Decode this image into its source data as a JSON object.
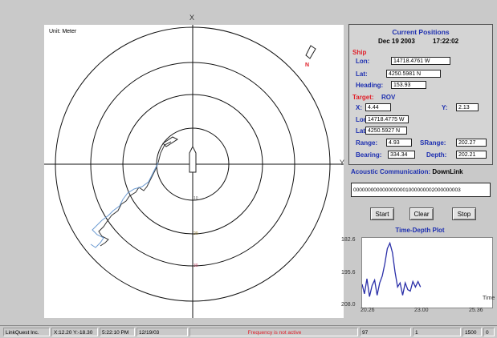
{
  "polar": {
    "title": "Unit: Meter",
    "axis_x_label": "X",
    "axis_y_label": "Y",
    "north_label": "N",
    "ring_labels": [
      "10",
      "20",
      "30"
    ]
  },
  "positions": {
    "title": "Current Positions",
    "date": "Dec 19 2003",
    "time": "17:22:02",
    "ship": {
      "section_label": "Ship",
      "lon_label": "Lon:",
      "lon": "14718.4761 W",
      "lat_label": "Lat:",
      "lat": "4250.5981 N",
      "heading_label": "Heading:",
      "heading": "153.93"
    },
    "target": {
      "section_label": "Target:",
      "name": "ROV",
      "x_label": "X:",
      "x": "4.44",
      "y_label": "Y:",
      "y": "2.13",
      "lon_label": "Lon:",
      "lon": "14718.4775 W",
      "lat_label": "Lat:",
      "lat": "4250.5927 N",
      "range_label": "Range:",
      "range": "4.93",
      "srange_label": "SRange:",
      "srange": "202.27",
      "bearing_label": "Bearing:",
      "bearing": "334.34",
      "depth_label": "Depth:",
      "depth": "202.21"
    }
  },
  "acoustic": {
    "label": "Acoustic Communication:",
    "direction": "DownLink",
    "data": "0000000000000000001000000002000000003"
  },
  "buttons": {
    "start": "Start",
    "clear": "Clear",
    "stop": "Stop"
  },
  "time_depth": {
    "title": "Time-Depth Plot",
    "y_ticks": [
      "182.6",
      "195.6",
      "208.0"
    ],
    "x_ticks": [
      "20.26",
      "23.00",
      "25.36"
    ],
    "x_axis_label": "Time"
  },
  "chart_data": {
    "type": "line",
    "title": "Time-Depth Plot",
    "xlabel": "Time",
    "ylabel": "",
    "xlim": [
      20.26,
      25.36
    ],
    "ylim": [
      182.6,
      208.0
    ],
    "x": [
      20.26,
      20.35,
      20.45,
      20.55,
      20.65,
      20.75,
      20.85,
      20.95,
      21.05,
      21.15,
      21.25,
      21.35,
      21.45,
      21.55,
      21.65,
      21.75,
      21.85,
      21.95,
      22.05,
      22.15,
      22.25,
      22.35,
      22.45,
      22.55
    ],
    "series": [
      {
        "values": [
          199.5,
          203.0,
          197.5,
          204.0,
          200.0,
          198.0,
          203.5,
          199.0,
          196.5,
          192.0,
          186.5,
          184.5,
          188.0,
          195.0,
          200.5,
          199.0,
          203.5,
          199.0,
          201.5,
          202.0,
          198.5,
          200.5,
          198.5,
          200.5
        ]
      }
    ]
  },
  "status_bar": {
    "app": "LinkQuest Inc.",
    "coords": "X:12.20  Y:-18.30",
    "time": "5:22:10 PM",
    "date": "12/19/03",
    "message": "Frequency is not active",
    "val1": "97",
    "val2": "1",
    "val3": "1500",
    "val4": "0"
  }
}
